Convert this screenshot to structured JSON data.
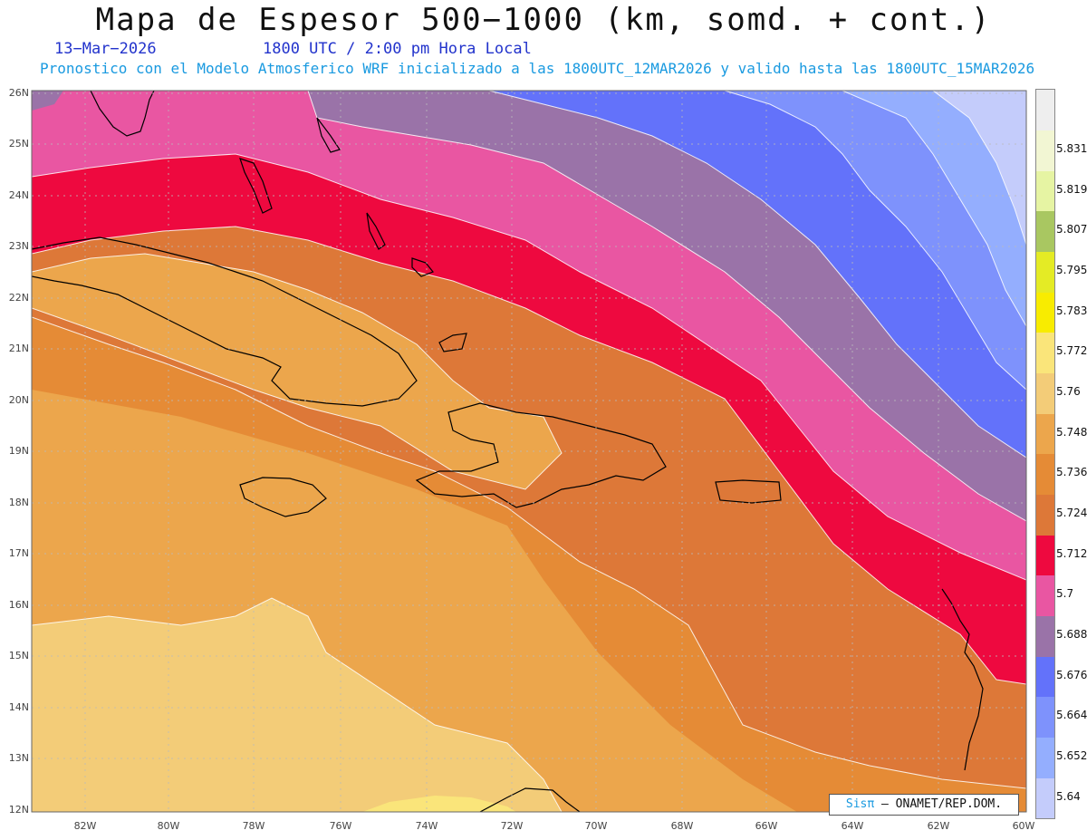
{
  "header": {
    "title": "Mapa de Espesor 500−1000 (km, somd. + cont.)",
    "date": "13−Mar−2026",
    "time": "1800 UTC / 2:00 pm Hora Local",
    "forecast": "Pronostico con el Modelo Atmosferico WRF inicializado a las 1800UTC_12MAR2026 y valido hasta las  1800UTC_15MAR2026"
  },
  "map": {
    "lat_labels": [
      "26N",
      "25N",
      "24N",
      "23N",
      "22N",
      "21N",
      "20N",
      "19N",
      "18N",
      "17N",
      "16N",
      "15N",
      "14N",
      "13N",
      "12N"
    ],
    "lon_labels": [
      "82W",
      "80W",
      "78W",
      "76W",
      "74W",
      "72W",
      "70W",
      "68W",
      "66W",
      "64W",
      "62W",
      "60W"
    ],
    "region": {
      "lon_min": -83.2,
      "lon_max": -60,
      "lat_min": 12,
      "lat_max": 26
    }
  },
  "legend": {
    "levels": [
      "5.64",
      "5.652",
      "5.664",
      "5.676",
      "5.688",
      "5.7",
      "5.712",
      "5.724",
      "5.736",
      "5.748",
      "5.76",
      "5.772",
      "5.783",
      "5.795",
      "5.807",
      "5.819",
      "5.831"
    ],
    "colors": [
      "#c4ccfb",
      "#94aefe",
      "#7e92fc",
      "#6372fa",
      "#9a73a8",
      "#e956a2",
      "#ee093f",
      "#dd7838",
      "#e58b36",
      "#eca64c",
      "#f3cc78",
      "#fae57a",
      "#f8ec00",
      "#e4eb25",
      "#a9c761",
      "#e6f4a3",
      "#f2f6d3",
      "#eeeeee"
    ]
  },
  "credit": {
    "logo": "Sisπ",
    "text": "– ONAMET/REP.DOM."
  }
}
